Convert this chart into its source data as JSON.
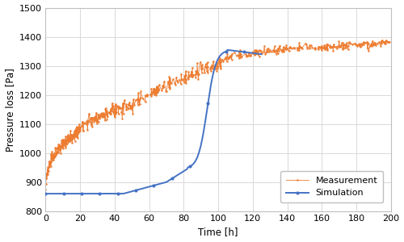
{
  "title": "",
  "xlabel": "Time [h]",
  "ylabel": "Pressure loss [Pa]",
  "xlim": [
    0,
    200
  ],
  "ylim": [
    800,
    1500
  ],
  "xticks": [
    0,
    20,
    40,
    60,
    80,
    100,
    120,
    140,
    160,
    180,
    200
  ],
  "yticks": [
    800,
    900,
    1000,
    1100,
    1200,
    1300,
    1400,
    1500
  ],
  "sim_color": "#4472C4",
  "meas_color": "#ED7D31",
  "sim_label": "Simulation",
  "meas_label": "Measurement",
  "background_color": "#ffffff",
  "grid_color": "#d9d9d9",
  "border_color": "#bfbfbf"
}
